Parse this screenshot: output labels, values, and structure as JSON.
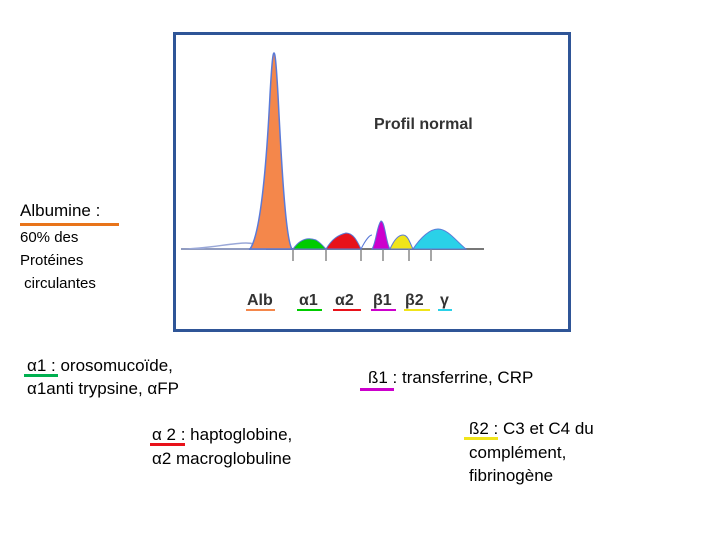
{
  "profile": {
    "title": "Profil normal",
    "fractions": [
      {
        "label": "Alb",
        "color": "#f4874b"
      },
      {
        "label": "α1",
        "color": "#00cc00"
      },
      {
        "label": "α2",
        "color": "#e8121a"
      },
      {
        "label": "β1",
        "color": "#cc00cc"
      },
      {
        "label": "β2",
        "color": "#f0e41a"
      },
      {
        "label": "γ",
        "color": "#2ad1e8"
      }
    ]
  },
  "albumine": {
    "title": "Albumine :",
    "lines": [
      "60% des",
      "Protéines",
      " circulantes"
    ],
    "underline_color": "#e8741a"
  },
  "alpha1": {
    "line1": "α1 : orosomucoïde,",
    "line2": "α1anti trypsine, αFP",
    "underline_color": "#00b050"
  },
  "alpha2": {
    "line1": "α 2 : haptoglobine,",
    "line2": "α2 macroglobuline",
    "underline_color": "#e8121a"
  },
  "beta1": {
    "line1": "ß1 : transferrine, CRP",
    "underline_color": "#cc00cc"
  },
  "beta2": {
    "line1": "ß2 : C3 et C4 du",
    "line2": "complément,",
    "line3": "fibrinogène",
    "underline_color": "#f0e41a"
  }
}
